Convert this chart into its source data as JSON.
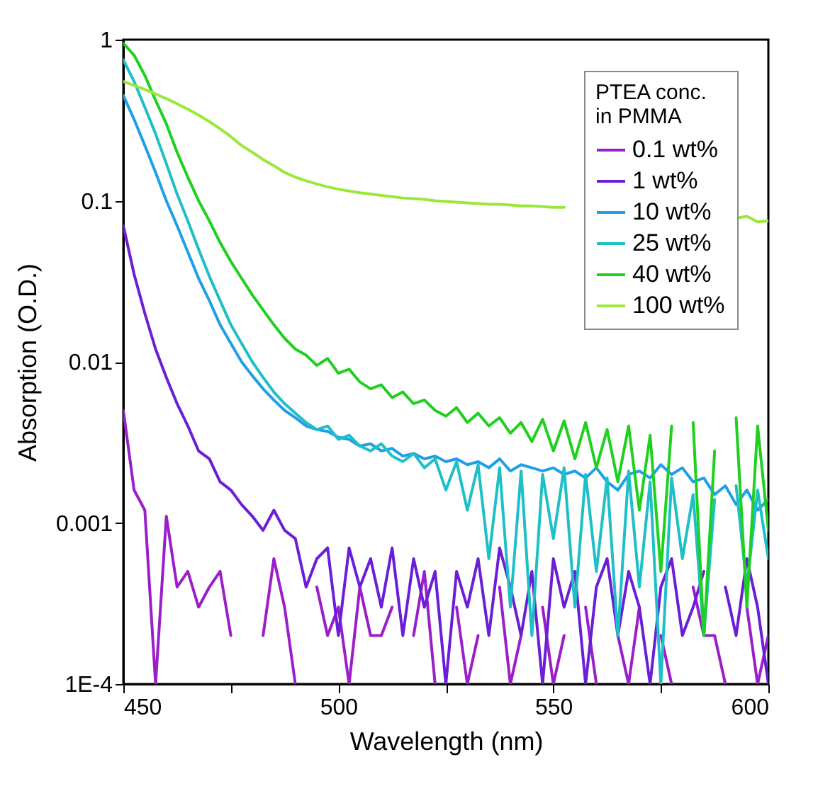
{
  "chart_data": {
    "type": "line",
    "xlabel": "Wavelength (nm)",
    "ylabel": "Absorption (O.D.)",
    "legend_title": "PTEA conc.\nin PMMA",
    "x": [
      450,
      452.5,
      455,
      457.5,
      460,
      462.5,
      465,
      467.5,
      470,
      472.5,
      475,
      477.5,
      480,
      482.5,
      485,
      487.5,
      490,
      492.5,
      495,
      497.5,
      500,
      502.5,
      505,
      507.5,
      510,
      512.5,
      515,
      517.5,
      520,
      522.5,
      525,
      527.5,
      530,
      532.5,
      535,
      537.5,
      540,
      542.5,
      545,
      547.5,
      550,
      552.5,
      555,
      557.5,
      560,
      562.5,
      565,
      567.5,
      570,
      572.5,
      575,
      577.5,
      580,
      582.5,
      585,
      587.5,
      590,
      592.5,
      595,
      597.5,
      600
    ],
    "series": [
      {
        "name": "0.1 wt%",
        "color": "#9b1fc9",
        "values": [
          0.005,
          0.0016,
          0.0012,
          0.0001,
          0.0011,
          0.0004,
          0.0005,
          0.0003,
          0.0004,
          0.0005,
          0.0002,
          null,
          null,
          0.0002,
          0.0006,
          0.0003,
          0.0001,
          null,
          0.0004,
          0.0002,
          0.0003,
          0.0001,
          0.0004,
          0.0002,
          0.0002,
          0.0003,
          null,
          0.0002,
          0.0005,
          0.0001,
          null,
          0.0003,
          0.0001,
          0.0002,
          null,
          0.0004,
          0.0001,
          0.0002,
          null,
          0.0003,
          0.0001,
          0.0002,
          null,
          0.0003,
          0.0001,
          null,
          0.0002,
          0.0001,
          0.0003,
          null,
          0.0002,
          0.0001,
          null,
          0.0004,
          0.0002,
          0.0002,
          0.0001,
          null,
          0.0003,
          0.0001,
          0.0002
        ]
      },
      {
        "name": "1 wt%",
        "color": "#6a1fd6",
        "values": [
          0.07,
          0.035,
          0.02,
          0.012,
          0.008,
          0.0055,
          0.004,
          0.0028,
          0.0025,
          0.0018,
          0.0016,
          0.0013,
          0.0011,
          0.0009,
          0.0012,
          0.0009,
          0.0008,
          0.0004,
          0.0006,
          0.0007,
          0.0002,
          0.0007,
          0.0004,
          0.0006,
          0.0003,
          0.0007,
          0.0002,
          0.0006,
          0.0003,
          0.0005,
          0.0001,
          0.0005,
          0.0003,
          0.0006,
          0.0002,
          0.0007,
          0.0004,
          0.0002,
          0.0005,
          0.0001,
          0.0006,
          0.0003,
          0.0005,
          0.0001,
          0.0004,
          0.0006,
          0.0002,
          0.0005,
          0.0003,
          0.0001,
          0.0004,
          0.0006,
          0.0002,
          0.0003,
          0.0005,
          null,
          0.0004,
          0.0002,
          0.0006,
          0.0003,
          0.0001
        ]
      },
      {
        "name": "10 wt%",
        "color": "#1f9fe8",
        "values": [
          0.45,
          0.32,
          0.22,
          0.15,
          0.1,
          0.07,
          0.048,
          0.033,
          0.024,
          0.017,
          0.013,
          0.01,
          0.0082,
          0.0068,
          0.0058,
          0.005,
          0.0045,
          0.004,
          0.0038,
          0.0037,
          0.0034,
          0.0033,
          0.003,
          0.0031,
          0.0028,
          0.0029,
          0.0026,
          0.0027,
          0.0025,
          0.0026,
          0.0024,
          0.0025,
          0.0023,
          0.0024,
          0.0022,
          0.0025,
          0.0021,
          0.0023,
          0.0022,
          0.0021,
          0.0022,
          0.002,
          0.0021,
          0.0019,
          0.0022,
          0.0018,
          0.0016,
          0.002,
          0.0021,
          0.0019,
          0.0023,
          0.002,
          0.0022,
          0.0018,
          0.0019,
          0.0015,
          0.0017,
          0.0013,
          0.0016,
          0.0012,
          0.0014
        ]
      },
      {
        "name": "25 wt%",
        "color": "#1fbfc8",
        "values": [
          0.75,
          0.55,
          0.38,
          0.26,
          0.17,
          0.11,
          0.075,
          0.05,
          0.034,
          0.024,
          0.017,
          0.013,
          0.01,
          0.008,
          0.0065,
          0.0055,
          0.0048,
          0.0042,
          0.0038,
          0.004,
          0.0033,
          0.0035,
          0.003,
          0.0028,
          0.0031,
          0.0026,
          0.0024,
          0.0027,
          0.0022,
          0.0025,
          0.0016,
          0.0024,
          0.0012,
          0.0023,
          0.0006,
          0.0022,
          0.0003,
          0.0021,
          0.0002,
          0.002,
          0.0008,
          0.0022,
          0.0003,
          0.002,
          0.0005,
          0.0019,
          0.0002,
          0.0021,
          0.0004,
          0.0018,
          0.0001,
          0.0019,
          0.0006,
          0.0015,
          0.0002,
          0.0014,
          null,
          0.0017,
          0.0004,
          0.0016,
          0.0006
        ]
      },
      {
        "name": "40 wt%",
        "color": "#1fd01f",
        "values": [
          0.95,
          0.8,
          0.6,
          0.42,
          0.3,
          0.2,
          0.14,
          0.1,
          0.075,
          0.055,
          0.042,
          0.033,
          0.026,
          0.021,
          0.017,
          0.014,
          0.012,
          0.011,
          0.0095,
          0.0105,
          0.0085,
          0.009,
          0.0075,
          0.0068,
          0.0072,
          0.006,
          0.0065,
          0.0055,
          0.0058,
          0.005,
          0.0046,
          0.0052,
          0.0042,
          0.0048,
          0.004,
          0.0045,
          0.0036,
          0.0042,
          0.0032,
          0.0044,
          0.0028,
          0.0043,
          0.0025,
          0.0042,
          0.0022,
          0.0038,
          0.0018,
          0.004,
          0.0012,
          0.0035,
          0.0005,
          0.004,
          null,
          0.0042,
          0.0002,
          0.0028,
          null,
          0.0045,
          0.0003,
          0.004,
          0.0009
        ]
      },
      {
        "name": "100 wt%",
        "color": "#9be83a",
        "values": [
          0.55,
          0.52,
          0.49,
          0.46,
          0.43,
          0.4,
          0.37,
          0.34,
          0.31,
          0.28,
          0.25,
          0.22,
          0.2,
          0.18,
          0.165,
          0.15,
          0.14,
          0.133,
          0.127,
          0.122,
          0.118,
          0.115,
          0.112,
          0.11,
          0.108,
          0.106,
          0.104,
          0.103,
          0.102,
          0.1,
          0.099,
          0.098,
          0.097,
          0.096,
          0.095,
          0.095,
          0.094,
          0.093,
          0.093,
          0.092,
          0.091,
          0.091,
          null,
          null,
          null,
          null,
          null,
          null,
          null,
          null,
          null,
          null,
          null,
          null,
          null,
          null,
          null,
          0.078,
          0.08,
          0.074,
          0.075
        ]
      }
    ],
    "xlim": [
      450,
      600
    ],
    "xticks": [
      450,
      {
        "value": 475,
        "label": null
      },
      500,
      {
        "value": 525,
        "label": null
      },
      550,
      {
        "value": 575,
        "label": null
      },
      600
    ],
    "ylim": [
      0.0001,
      1
    ],
    "yticks": [
      {
        "value": 0.0001,
        "label": "1E-4"
      },
      0.001,
      0.01,
      0.1,
      1
    ],
    "log": "y",
    "legend": "top right",
    "grid": false,
    "marker": "none",
    "line_style": "solid"
  }
}
